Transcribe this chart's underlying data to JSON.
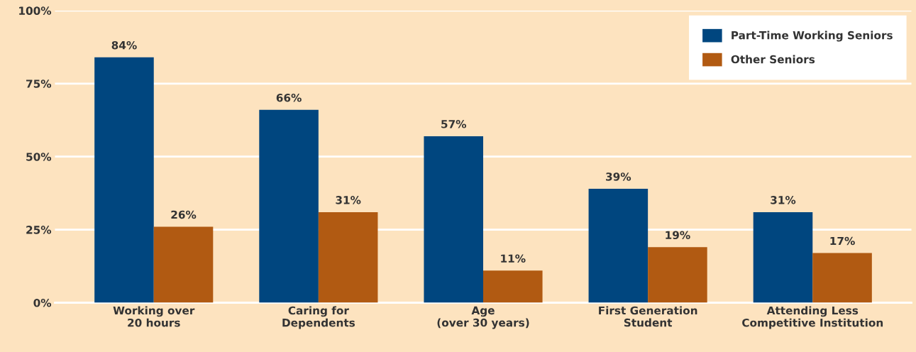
{
  "chart_data": {
    "type": "bar",
    "categories": [
      "Working over\n20 hours",
      "Caring for\nDependents",
      "Age\n(over 30 years)",
      "First Generation\nStudent",
      "Attending Less\nCompetitive Institution"
    ],
    "series": [
      {
        "name": "Part-Time Working Seniors",
        "color": "#00467f",
        "values": [
          84,
          66,
          57,
          39,
          31
        ],
        "value_labels": [
          "84%",
          "66%",
          "57%",
          "39%",
          "31%"
        ]
      },
      {
        "name": "Other Seniors",
        "color": "#b15a12",
        "values": [
          26,
          31,
          11,
          19,
          17
        ],
        "value_labels": [
          "26%",
          "31%",
          "11%",
          "19%",
          "17%"
        ]
      }
    ],
    "ylim": [
      0,
      100
    ],
    "yticks": [
      {
        "value": 0,
        "label": "0%"
      },
      {
        "value": 25,
        "label": "25%"
      },
      {
        "value": 50,
        "label": "50%"
      },
      {
        "value": 75,
        "label": "75%"
      },
      {
        "value": 100,
        "label": "100%"
      }
    ],
    "grid": "y",
    "legend": "top right"
  }
}
